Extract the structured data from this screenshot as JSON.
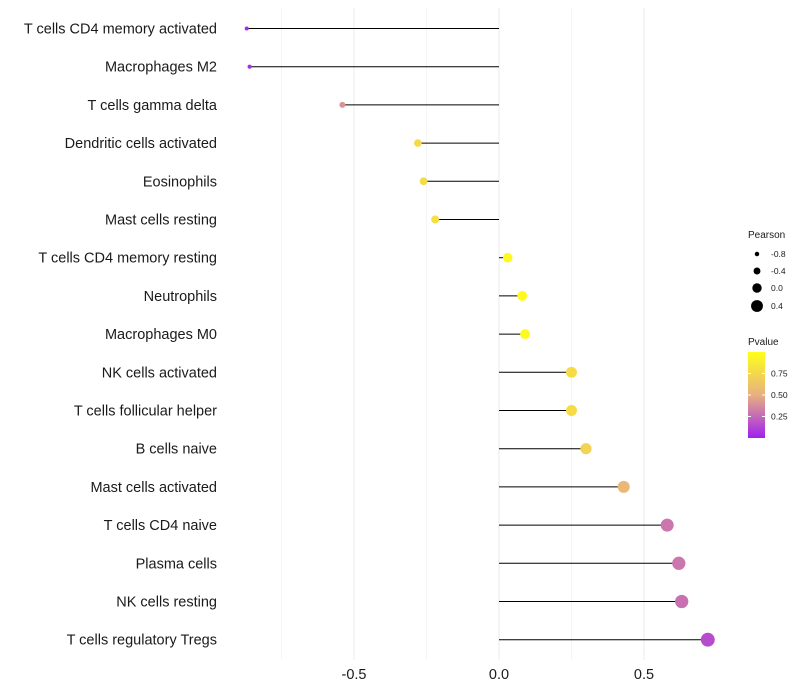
{
  "chart_data": {
    "type": "lollipop",
    "title": "",
    "xlabel": "",
    "ylabel": "",
    "xlim": [
      -0.87,
      0.73
    ],
    "x_ticks": [
      -0.5,
      0.0,
      0.5
    ],
    "x_tick_labels": [
      "-0.5",
      "0.0",
      "0.5"
    ],
    "minor_x_gridlines": [
      -0.75,
      -0.25,
      0.25
    ],
    "categories": [
      "T cells CD4 memory activated",
      "Macrophages M2",
      "T cells gamma delta",
      "Dendritic cells activated",
      "Eosinophils",
      "Mast cells resting",
      "T cells CD4 memory resting",
      "Neutrophils",
      "Macrophages M0",
      "NK cells activated",
      "T cells follicular helper",
      "B cells naive",
      "Mast cells activated",
      "T cells CD4 naive",
      "Plasma cells",
      "NK cells resting",
      "T cells regulatory  Tregs"
    ],
    "values": [
      -0.87,
      -0.86,
      -0.54,
      -0.28,
      -0.26,
      -0.22,
      0.03,
      0.08,
      0.09,
      0.25,
      0.25,
      0.3,
      0.43,
      0.58,
      0.62,
      0.63,
      0.72
    ],
    "pvalues": [
      0.05,
      0.05,
      0.4,
      0.78,
      0.78,
      0.8,
      0.97,
      0.97,
      0.97,
      0.78,
      0.78,
      0.72,
      0.55,
      0.3,
      0.3,
      0.28,
      0.15
    ],
    "size_legend": {
      "title": "Pearson",
      "entries": [
        {
          "label": "-0.8",
          "value": -0.8
        },
        {
          "label": "-0.4",
          "value": -0.4
        },
        {
          "label": "0.0",
          "value": 0.0
        },
        {
          "label": "0.4",
          "value": 0.4
        }
      ]
    },
    "color_legend": {
      "title": "Pvalue",
      "ticks": [
        0.75,
        0.5,
        0.25
      ],
      "tick_labels": [
        "0.75",
        "0.50",
        "0.25"
      ],
      "range": [
        0.0,
        1.0
      ],
      "low_color": "#a020f0",
      "mid_color": "#e8b080",
      "high_color": "#ffff1a"
    },
    "stem_color": "#000000",
    "grid_color": "#ebebeb"
  }
}
